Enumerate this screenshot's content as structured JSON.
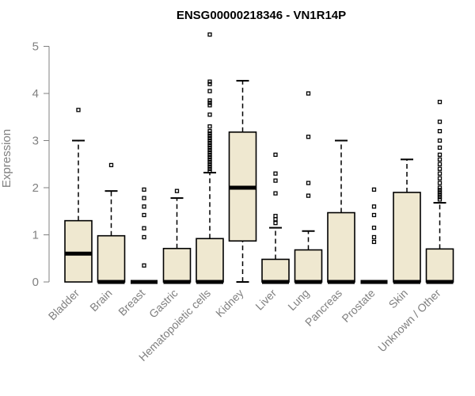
{
  "chart_data": {
    "type": "box",
    "title": "ENSG00000218346 - VN1R14P",
    "xlabel": "",
    "ylabel": "Expression",
    "ylim": [
      0,
      5.25
    ],
    "yticks": [
      0,
      1,
      2,
      3,
      4,
      5
    ],
    "categories": [
      "Bladder",
      "Brain",
      "Breast",
      "Gastric",
      "Hematopoietic cells",
      "Kidney",
      "Liver",
      "Lung",
      "Pancreas",
      "Prostate",
      "Skin",
      "Unknown / Other"
    ],
    "boxes": [
      {
        "min": 0,
        "q1": 0,
        "median": 0.6,
        "q3": 1.3,
        "max": 3.0,
        "outliers": [
          3.65
        ]
      },
      {
        "min": 0,
        "q1": 0,
        "median": 0,
        "q3": 0.98,
        "max": 1.93,
        "outliers": [
          2.48
        ]
      },
      {
        "min": 0,
        "q1": 0,
        "median": 0,
        "q3": 0,
        "max": 0,
        "outliers": [
          1.96,
          1.78,
          1.6,
          1.42,
          1.14,
          0.95,
          0.35
        ]
      },
      {
        "min": 0,
        "q1": 0,
        "median": 0,
        "q3": 0.71,
        "max": 1.78,
        "outliers": [
          1.93
        ]
      },
      {
        "min": 0,
        "q1": 0,
        "median": 0,
        "q3": 0.92,
        "max": 2.32,
        "outliers": [
          5.25,
          4.25,
          4.2,
          4.05,
          3.85,
          3.8,
          3.75,
          3.55,
          3.3,
          3.2,
          3.15,
          3.1,
          3.05,
          3.0,
          2.95,
          2.9,
          2.85,
          2.8,
          2.75,
          2.7,
          2.65,
          2.6,
          2.55,
          2.5,
          2.45,
          2.4,
          2.35
        ]
      },
      {
        "min": 0,
        "q1": 0.87,
        "median": 2.0,
        "q3": 3.18,
        "max": 4.27,
        "outliers": []
      },
      {
        "min": 0,
        "q1": 0,
        "median": 0,
        "q3": 0.48,
        "max": 1.15,
        "outliers": [
          2.7,
          2.3,
          2.15,
          1.88,
          1.4,
          1.33,
          1.25
        ]
      },
      {
        "min": 0,
        "q1": 0,
        "median": 0,
        "q3": 0.68,
        "max": 1.08,
        "outliers": [
          4.0,
          3.08,
          2.1,
          1.83
        ]
      },
      {
        "min": 0,
        "q1": 0,
        "median": 0,
        "q3": 1.47,
        "max": 3.0,
        "outliers": []
      },
      {
        "min": 0,
        "q1": 0,
        "median": 0,
        "q3": 0,
        "max": 0,
        "outliers": [
          1.96,
          1.6,
          1.42,
          1.15,
          0.95,
          0.85
        ]
      },
      {
        "min": 0,
        "q1": 0,
        "median": 0,
        "q3": 1.9,
        "max": 2.6,
        "outliers": []
      },
      {
        "min": 0,
        "q1": 0,
        "median": 0,
        "q3": 0.7,
        "max": 1.68,
        "outliers": [
          3.82,
          3.4,
          3.2,
          3.0,
          2.85,
          2.7,
          2.6,
          2.5,
          2.4,
          2.3,
          2.2,
          2.1,
          2.0,
          1.95,
          1.9,
          1.85,
          1.8,
          1.75
        ]
      }
    ],
    "colors": {
      "box_fill": "#efe8d0",
      "box_stroke": "#000000",
      "axis": "#808080"
    },
    "grid": false
  }
}
